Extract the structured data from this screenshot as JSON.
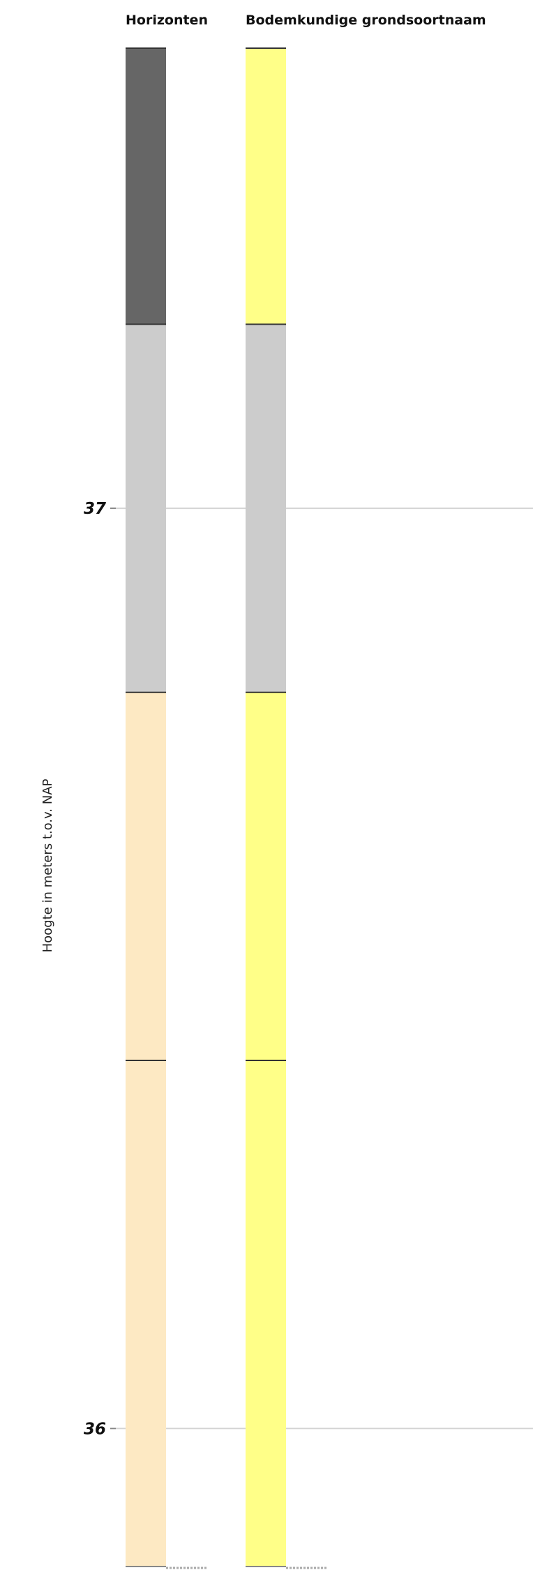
{
  "chart_data": {
    "type": "bar",
    "columns": [
      {
        "name": "Horizonten",
        "layers": [
          {
            "top": 37.5,
            "bottom": 37.2,
            "color": "#666666"
          },
          {
            "top": 37.2,
            "bottom": 36.8,
            "color": "#cccccc"
          },
          {
            "top": 36.8,
            "bottom": 36.4,
            "color": "#fde9c3"
          },
          {
            "top": 36.4,
            "bottom": 35.85,
            "color": "#fde9c3"
          }
        ]
      },
      {
        "name": "Bodemkundige grondsoortnaam",
        "layers": [
          {
            "top": 37.5,
            "bottom": 37.2,
            "color": "#ffff88"
          },
          {
            "top": 37.2,
            "bottom": 36.8,
            "color": "#cccccc"
          },
          {
            "top": 36.8,
            "bottom": 36.4,
            "color": "#ffff88"
          },
          {
            "top": 36.4,
            "bottom": 35.85,
            "color": "#ffff88"
          }
        ]
      }
    ],
    "ylabel": "Hoogte in meters t.o.v. NAP",
    "yticks": [
      37,
      36
    ],
    "ylim": [
      35.85,
      37.5
    ],
    "grid": true
  }
}
